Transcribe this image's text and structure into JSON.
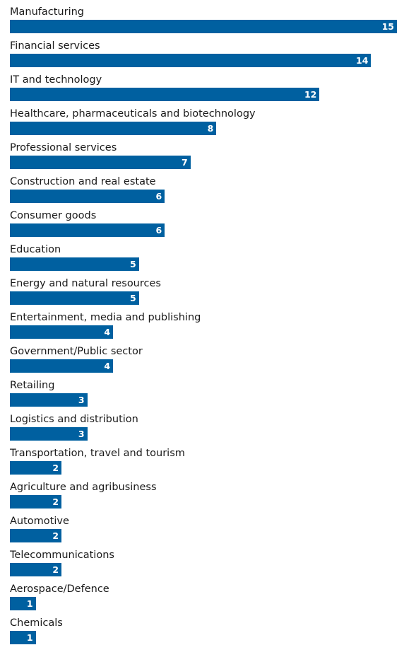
{
  "chart_data": {
    "type": "bar",
    "orientation": "horizontal",
    "categories": [
      "Manufacturing",
      "Financial services",
      "IT and technology",
      "Healthcare, pharmaceuticals and biotechnology",
      "Professional services",
      "Construction and real estate",
      "Consumer goods",
      "Education",
      "Energy and natural resources",
      "Entertainment, media and publishing",
      "Government/Public sector",
      "Retailing",
      "Logistics and distribution",
      "Transportation, travel and tourism",
      "Agriculture and agribusiness",
      "Automotive",
      "Telecommunications",
      "Aerospace/Defence",
      "Chemicals"
    ],
    "values": [
      15,
      14,
      12,
      8,
      7,
      6,
      6,
      5,
      5,
      4,
      4,
      3,
      3,
      2,
      2,
      2,
      2,
      1,
      1
    ],
    "title": "",
    "xlabel": "",
    "ylabel": "",
    "xlim": [
      0,
      15
    ],
    "grid": false,
    "legend": "none",
    "data_labels": "inside-end",
    "bar_color": "#0060a0",
    "label_color": "#ffffff"
  }
}
